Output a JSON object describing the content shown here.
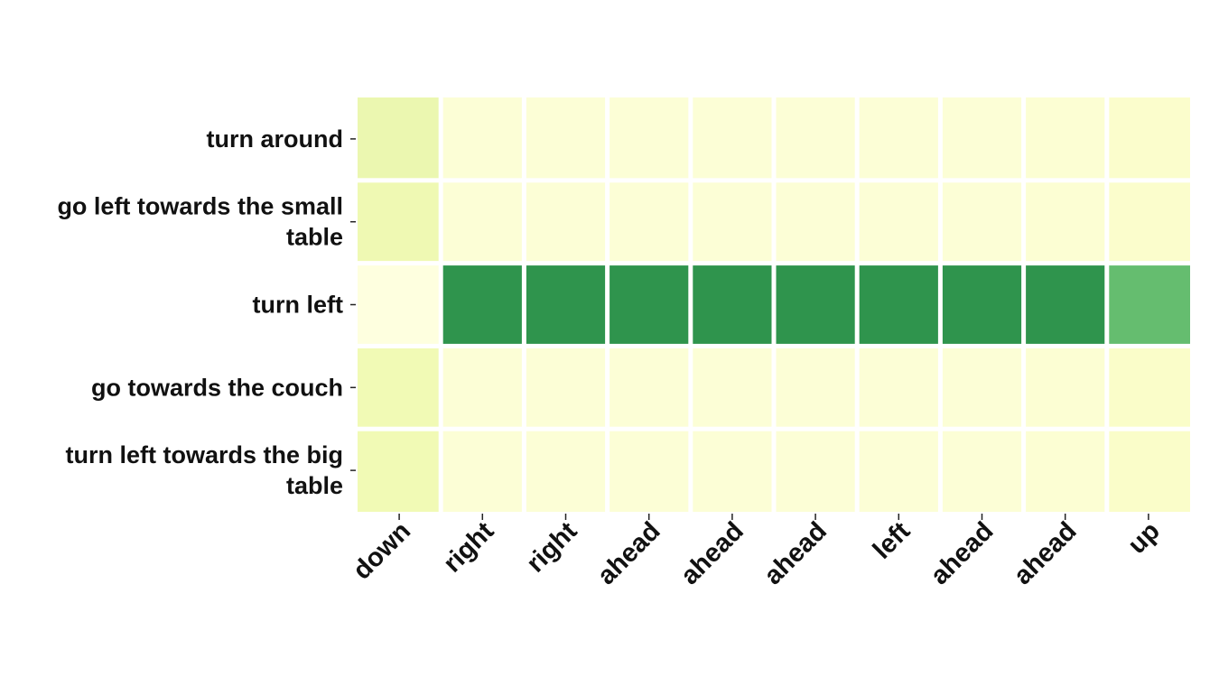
{
  "chart_data": {
    "type": "heatmap",
    "title": "",
    "xlabel": "",
    "ylabel": "",
    "x_categories": [
      "down",
      "right",
      "right",
      "ahead",
      "ahead",
      "ahead",
      "left",
      "ahead",
      "ahead",
      "up"
    ],
    "y_categories": [
      "turn around",
      "go left towards the small table",
      "turn left",
      "go towards the couch",
      "turn left towards the big table"
    ],
    "values": [
      [
        0.2,
        0.05,
        0.05,
        0.05,
        0.05,
        0.05,
        0.05,
        0.05,
        0.06,
        0.08
      ],
      [
        0.18,
        0.05,
        0.05,
        0.05,
        0.05,
        0.05,
        0.05,
        0.05,
        0.06,
        0.08
      ],
      [
        0.02,
        0.8,
        0.8,
        0.8,
        0.8,
        0.8,
        0.8,
        0.8,
        0.8,
        0.62
      ],
      [
        0.17,
        0.05,
        0.05,
        0.05,
        0.05,
        0.05,
        0.05,
        0.05,
        0.06,
        0.09
      ],
      [
        0.17,
        0.05,
        0.05,
        0.05,
        0.05,
        0.05,
        0.05,
        0.05,
        0.06,
        0.09
      ]
    ],
    "colormap": [
      "#ffffe5",
      "#f7fcb9",
      "#d9f0a3",
      "#addd8e",
      "#78c679",
      "#41ab5d",
      "#238443",
      "#006837"
    ],
    "value_range": [
      0,
      1
    ],
    "grid": false,
    "legend": "none"
  }
}
